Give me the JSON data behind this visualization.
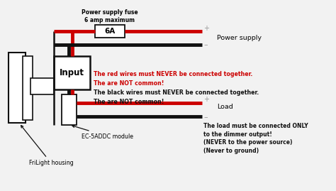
{
  "bg_color": "#f2f2f2",
  "labels": {
    "fuse_title": "Power supply fuse\n6 amp maximum",
    "fuse_label": "6A",
    "power_supply": "Power supply",
    "input_box": "Input",
    "module_label": "EC-5ADDC module",
    "frilight_label": "FriLight housing",
    "load_label": "Load",
    "red_warning": "The red wires must NEVER be connected together.\nThe are NOT common!",
    "black_warning": "The black wires must NEVER be connected together.\nThe are NOT common!",
    "load_warning": "The load must be connected ONLY\nto the dimmer output!\n(NEVER to the power source)\n(Never to ground)"
  },
  "colors": {
    "red_wire": "#cc0000",
    "black_wire": "#111111",
    "box_border": "#111111",
    "box_fill": "#ffffff",
    "bg": "#f2f2f2",
    "plus_minus": "#999999",
    "warning_red": "#cc0000",
    "warning_black": "#111111",
    "arrow": "#111111"
  },
  "layout": {
    "xlim": [
      0,
      10
    ],
    "ylim": [
      0,
      5.65
    ]
  }
}
